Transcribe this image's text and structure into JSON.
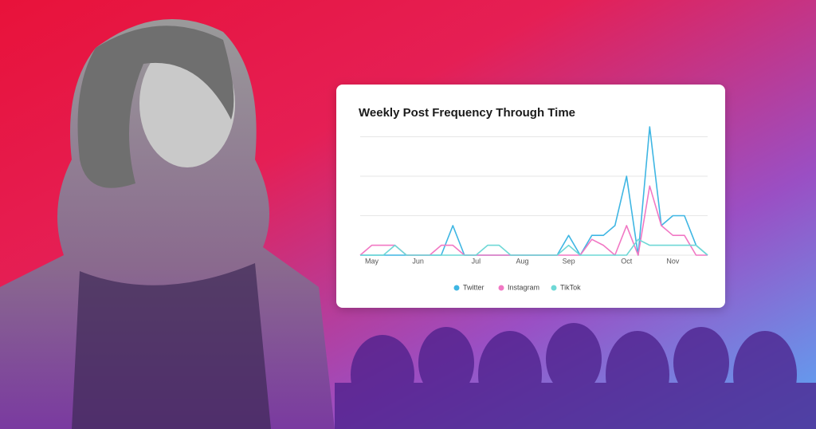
{
  "chart_data": {
    "type": "line",
    "title": "Weekly Post Frequency Through Time",
    "categories": [
      null,
      "May",
      null,
      null,
      null,
      "Jun",
      null,
      null,
      null,
      null,
      "Jul",
      null,
      null,
      null,
      "Aug",
      null,
      null,
      null,
      "Sep",
      null,
      null,
      null,
      null,
      "Oct",
      null,
      null,
      null,
      "Nov",
      null,
      null,
      null
    ],
    "series": [
      {
        "name": "Twitter",
        "color": "#3fb6e3",
        "values": [
          0,
          0,
          0,
          0,
          0,
          0,
          0,
          0,
          0.75,
          0,
          0,
          0,
          0,
          0,
          0,
          0,
          0,
          0,
          0.5,
          0,
          0.5,
          0.5,
          0.75,
          2,
          0,
          3.25,
          0.75,
          1,
          1,
          0.25,
          0
        ]
      },
      {
        "name": "Instagram",
        "color": "#f178c4",
        "values": [
          0,
          0.25,
          0.25,
          0.25,
          0,
          0,
          0,
          0.25,
          0.25,
          0,
          0,
          0,
          0,
          0,
          0,
          0,
          0,
          0,
          0,
          0,
          0.4,
          0.25,
          0,
          0.75,
          0,
          1.75,
          0.75,
          0.5,
          0.5,
          0,
          0
        ]
      },
      {
        "name": "TikTok",
        "color": "#6fd8d6",
        "values": [
          0,
          0,
          0,
          0.25,
          0,
          0,
          0,
          0,
          0,
          0,
          0,
          0.25,
          0.25,
          0,
          0,
          0,
          0,
          0,
          0.25,
          0,
          0,
          0,
          0,
          0,
          0.4,
          0.25,
          0.25,
          0.25,
          0.25,
          0.25,
          0
        ]
      }
    ],
    "ylim": [
      0,
      3.3
    ],
    "yticks": [
      0,
      1,
      2,
      3
    ],
    "grid": true
  }
}
